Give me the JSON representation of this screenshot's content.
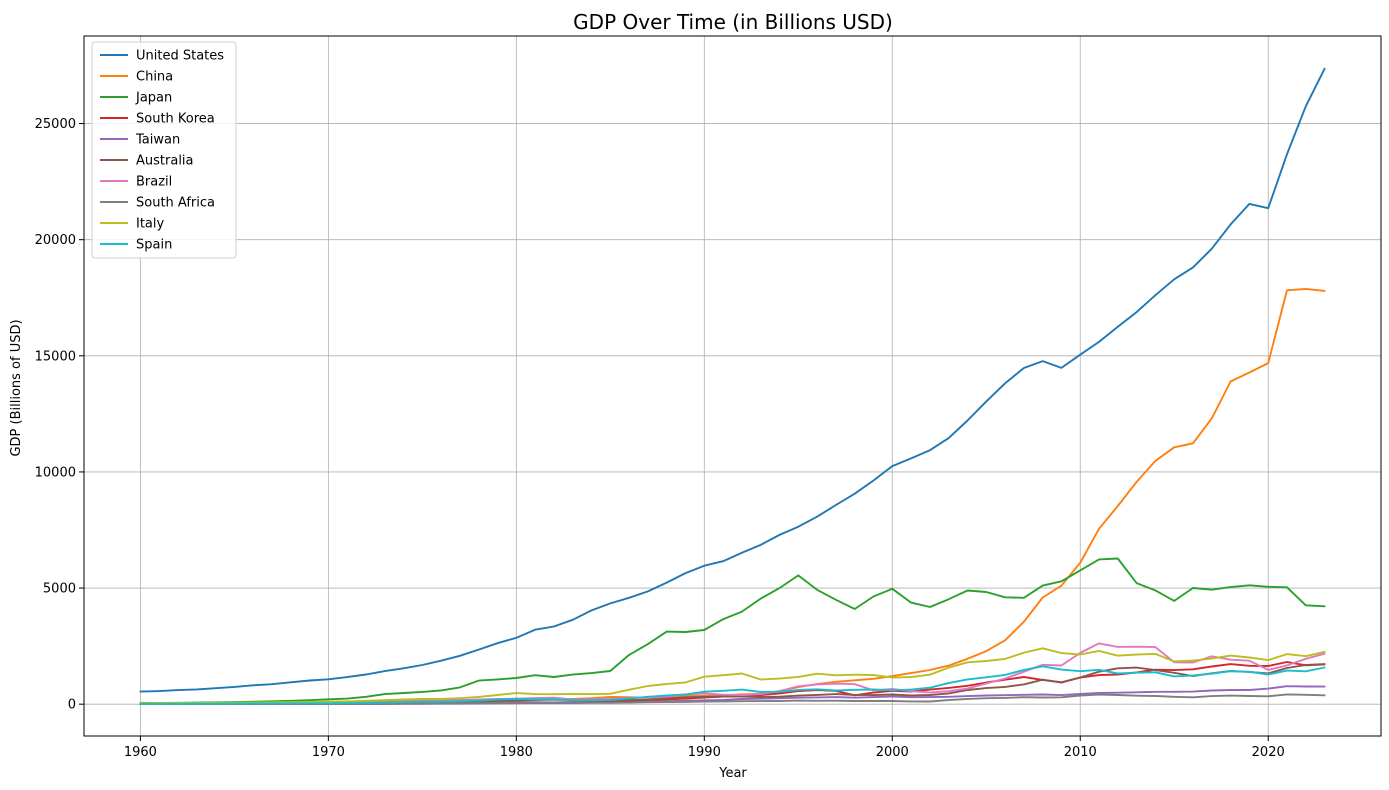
{
  "chart_data": {
    "type": "line",
    "title": "GDP Over Time (in Billions USD)",
    "xlabel": "Year",
    "ylabel": "GDP (Billions of USD)",
    "xlim": [
      1957,
      2026
    ],
    "ylim": [
      -1370,
      28770
    ],
    "xticks": [
      1960,
      1970,
      1980,
      1990,
      2000,
      2010,
      2020
    ],
    "yticks": [
      0,
      5000,
      10000,
      15000,
      20000,
      25000
    ],
    "grid": true,
    "legend_position": "top-left",
    "years": [
      1960,
      1961,
      1962,
      1963,
      1964,
      1965,
      1966,
      1967,
      1968,
      1969,
      1970,
      1971,
      1972,
      1973,
      1974,
      1975,
      1976,
      1977,
      1978,
      1979,
      1980,
      1981,
      1982,
      1983,
      1984,
      1985,
      1986,
      1987,
      1988,
      1989,
      1990,
      1991,
      1992,
      1993,
      1994,
      1995,
      1996,
      1997,
      1998,
      1999,
      2000,
      2001,
      2002,
      2003,
      2004,
      2005,
      2006,
      2007,
      2008,
      2009,
      2010,
      2011,
      2012,
      2013,
      2014,
      2015,
      2016,
      2017,
      2018,
      2019,
      2020,
      2021,
      2022,
      2023
    ],
    "series": [
      {
        "name": "United States",
        "color": "#1f77b4",
        "values": [
          543,
          563,
          605,
          638,
          686,
          744,
          815,
          862,
          943,
          1020,
          1073,
          1165,
          1280,
          1425,
          1545,
          1685,
          1873,
          2082,
          2352,
          2627,
          2857,
          3207,
          3343,
          3634,
          4037,
          4339,
          4580,
          4855,
          5236,
          5642,
          5963,
          6158,
          6520,
          6858,
          7287,
          7640,
          8073,
          8578,
          9063,
          9631,
          10251,
          10582,
          10936,
          11458,
          12214,
          13037,
          13815,
          14475,
          14770,
          14478,
          15049,
          15600,
          16254,
          16880,
          17608,
          18295,
          18805,
          19612,
          20656,
          21540,
          21354,
          23681,
          25744,
          27361
        ]
      },
      {
        "name": "China",
        "color": "#ff7f0e",
        "values": [
          60,
          50,
          47,
          51,
          60,
          71,
          77,
          73,
          71,
          79,
          93,
          100,
          114,
          139,
          144,
          163,
          154,
          175,
          150,
          178,
          191,
          195,
          203,
          229,
          259,
          309,
          301,
          272,
          312,
          348,
          361,
          383,
          427,
          445,
          564,
          735,
          864,
          962,
          1029,
          1094,
          1211,
          1339,
          1471,
          1660,
          1955,
          2286,
          2752,
          3550,
          4594,
          5102,
          6087,
          7552,
          8532,
          9570,
          10476,
          11062,
          11233,
          12310,
          13895,
          14280,
          14688,
          17820,
          17882,
          17795
        ]
      },
      {
        "name": "Japan",
        "color": "#2ca02c",
        "values": [
          44,
          54,
          61,
          70,
          82,
          91,
          106,
          124,
          146,
          172,
          212,
          241,
          319,
          435,
          483,
          530,
          594,
          723,
          1016,
          1069,
          1129,
          1246,
          1170,
          1273,
          1339,
          1427,
          2120,
          2585,
          3126,
          3107,
          3196,
          3657,
          3988,
          4545,
          4998,
          5546,
          4923,
          4493,
          4098,
          4636,
          4968,
          4374,
          4183,
          4519,
          4893,
          4832,
          4601,
          4580,
          5106,
          5289,
          5759,
          6233,
          6272,
          5212,
          4897,
          4445,
          5004,
          4931,
          5040,
          5118,
          5055,
          5034,
          4256,
          4213
        ]
      },
      {
        "name": "South Korea",
        "color": "#d62728",
        "values": [
          4,
          2,
          3,
          4,
          3,
          3,
          4,
          5,
          6,
          8,
          9,
          10,
          11,
          14,
          20,
          22,
          30,
          39,
          52,
          66,
          65,
          72,
          78,
          88,
          97,
          101,
          116,
          147,
          199,
          246,
          283,
          330,
          356,
          392,
          463,
          566,
          610,
          570,
          384,
          497,
          576,
          547,
          627,
          702,
          793,
          934,
          1053,
          1172,
          1047,
          944,
          1144,
          1253,
          1278,
          1370,
          1484,
          1466,
          1500,
          1623,
          1725,
          1651,
          1645,
          1818,
          1674,
          1713
        ]
      },
      {
        "name": "Taiwan",
        "color": "#9467bd",
        "values": [
          2,
          2,
          2,
          2,
          3,
          3,
          3,
          4,
          4,
          5,
          6,
          7,
          8,
          11,
          15,
          16,
          19,
          22,
          27,
          33,
          42,
          48,
          49,
          52,
          59,
          63,
          78,
          105,
          126,
          152,
          166,
          186,
          222,
          235,
          256,
          279,
          292,
          303,
          280,
          303,
          331,
          299,
          307,
          317,
          346,
          375,
          386,
          406,
          416,
          392,
          444,
          484,
          495,
          512,
          535,
          534,
          543,
          590,
          609,
          612,
          673,
          775,
          762,
          756
        ]
      },
      {
        "name": "Australia",
        "color": "#8c564b",
        "values": [
          19,
          20,
          20,
          22,
          24,
          26,
          27,
          30,
          33,
          36,
          41,
          45,
          52,
          64,
          88,
          97,
          104,
          110,
          118,
          135,
          150,
          177,
          193,
          178,
          198,
          176,
          174,
          194,
          243,
          296,
          311,
          325,
          325,
          311,
          322,
          368,
          401,
          435,
          400,
          389,
          415,
          378,
          394,
          466,
          612,
          692,
          746,
          851,
          1056,
          928,
          1148,
          1398,
          1547,
          1577,
          1468,
          1351,
          1208,
          1330,
          1428,
          1392,
          1327,
          1559,
          1690,
          1724
        ]
      },
      {
        "name": "Brazil",
        "color": "#e377c2",
        "values": [
          15,
          15,
          19,
          23,
          21,
          22,
          27,
          30,
          32,
          35,
          42,
          49,
          58,
          80,
          105,
          123,
          152,
          176,
          201,
          224,
          235,
          264,
          281,
          203,
          209,
          223,
          268,
          294,
          330,
          425,
          462,
          407,
          390,
          438,
          558,
          769,
          850,
          883,
          864,
          599,
          655,
          559,
          508,
          558,
          669,
          891,
          1107,
          1397,
          1695,
          1667,
          2209,
          2616,
          2465,
          2473,
          2456,
          1802,
          1796,
          2063,
          1917,
          1873,
          1476,
          1670,
          1952,
          2174
        ]
      },
      {
        "name": "South Africa",
        "color": "#7f7f7f",
        "values": [
          8,
          8,
          9,
          10,
          11,
          12,
          13,
          14,
          15,
          17,
          18,
          20,
          21,
          28,
          34,
          36,
          36,
          40,
          46,
          57,
          83,
          85,
          78,
          87,
          78,
          58,
          66,
          87,
          94,
          97,
          112,
          120,
          130,
          134,
          139,
          155,
          147,
          152,
          137,
          136,
          136,
          121,
          116,
          175,
          229,
          258,
          272,
          299,
          286,
          297,
          375,
          417,
          396,
          367,
          351,
          318,
          296,
          349,
          368,
          351,
          338,
          420,
          406,
          381
        ]
      },
      {
        "name": "Italy",
        "color": "#bcbd22",
        "values": [
          40,
          45,
          50,
          57,
          63,
          67,
          73,
          81,
          87,
          98,
          113,
          124,
          144,
          175,
          200,
          228,
          225,
          257,
          315,
          394,
          478,
          432,
          429,
          441,
          436,
          448,
          624,
          781,
          869,
          936,
          1182,
          1247,
          1320,
          1062,
          1102,
          1174,
          1313,
          1242,
          1270,
          1252,
          1147,
          1166,
          1271,
          1573,
          1802,
          1859,
          1949,
          2215,
          2404,
          2200,
          2140,
          2295,
          2087,
          2141,
          2163,
          1837,
          1878,
          1961,
          2092,
          2011,
          1897,
          2155,
          2066,
          2255
        ]
      },
      {
        "name": "Spain",
        "color": "#17becf",
        "values": [
          12,
          14,
          16,
          20,
          22,
          25,
          29,
          32,
          32,
          37,
          40,
          45,
          56,
          72,
          89,
          104,
          110,
          127,
          153,
          199,
          233,
          206,
          200,
          174,
          173,
          180,
          251,
          317,
          376,
          412,
          536,
          576,
          630,
          524,
          531,
          613,
          642,
          589,
          619,
          633,
          598,
          627,
          708,
          907,
          1069,
          1157,
          1260,
          1474,
          1632,
          1491,
          1420,
          1479,
          1324,
          1355,
          1372,
          1196,
          1233,
          1312,
          1421,
          1394,
          1276,
          1446,
          1417,
          1581
        ]
      }
    ]
  }
}
